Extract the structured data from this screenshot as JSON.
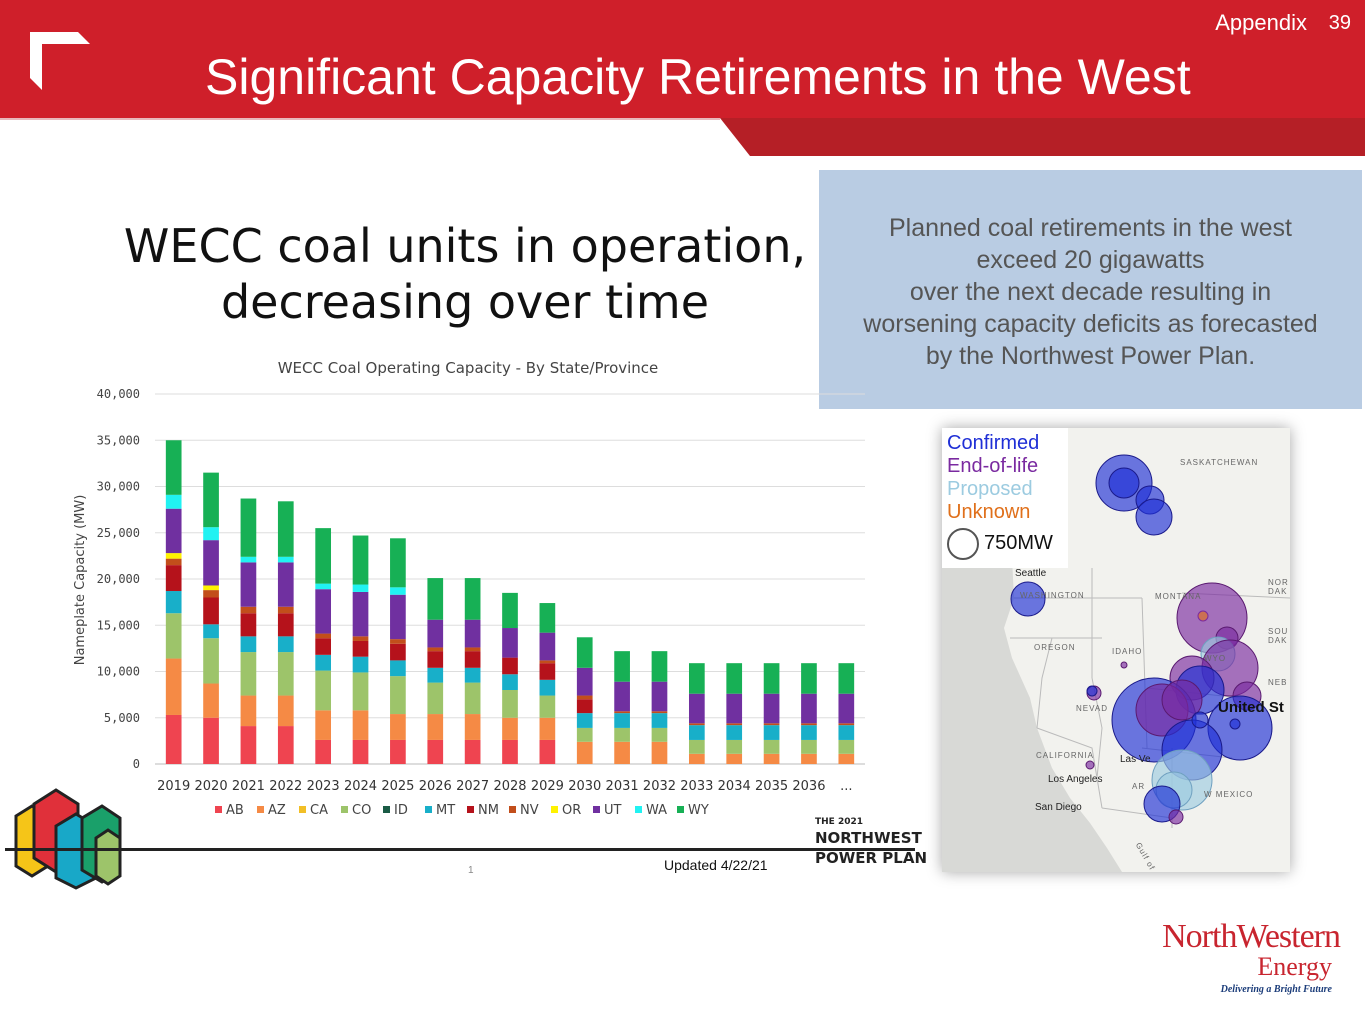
{
  "header": {
    "section": "Appendix",
    "page_number": "39",
    "title": "Significant Capacity Retirements in the West"
  },
  "chart_heading": {
    "line1": "WECC coal units in operation,",
    "line2": "decreasing over time"
  },
  "callout": {
    "line1": "Planned coal retirements in the west",
    "line2": "exceed 20 gigawatts",
    "line3": "over the next decade resulting in",
    "line4": "worsening capacity deficits as forecasted",
    "line5": "by the Northwest Power Plan."
  },
  "chart_data": {
    "type": "bar",
    "stacked": true,
    "title": "WECC Coal Operating Capacity - By State/Province",
    "ylabel": "Nameplate Capacity (MW)",
    "xlabel": "",
    "ylim": [
      0,
      40000
    ],
    "yticks": [
      "0",
      "5,000",
      "10,000",
      "15,000",
      "20,000",
      "25,000",
      "30,000",
      "35,000",
      "40,000"
    ],
    "grid": true,
    "legend_position": "bottom",
    "categories": [
      "2019",
      "2020",
      "2021",
      "2022",
      "2023",
      "2024",
      "2025",
      "2026",
      "2027",
      "2028",
      "2029",
      "2030",
      "2031",
      "2032",
      "2033",
      "2034",
      "2035",
      "2036",
      "..."
    ],
    "series": [
      {
        "name": "AB",
        "color": "#ef4450",
        "values": [
          5300,
          5000,
          4100,
          4100,
          2600,
          2600,
          2600,
          2600,
          2600,
          2600,
          2600,
          0,
          0,
          0,
          0,
          0,
          0,
          0,
          0
        ]
      },
      {
        "name": "AZ",
        "color": "#f58a45",
        "values": [
          6100,
          3700,
          3300,
          3300,
          3200,
          3200,
          2800,
          2800,
          2800,
          2400,
          2400,
          2400,
          2400,
          2400,
          1100,
          1100,
          1100,
          1100,
          1100
        ]
      },
      {
        "name": "CA",
        "color": "#f2bf26",
        "values": [
          0,
          0,
          0,
          0,
          0,
          0,
          0,
          0,
          0,
          0,
          0,
          0,
          0,
          0,
          0,
          0,
          0,
          0,
          0
        ]
      },
      {
        "name": "CO",
        "color": "#9dc46a",
        "values": [
          4900,
          4900,
          4700,
          4700,
          4300,
          4100,
          4100,
          3400,
          3400,
          3000,
          2400,
          1500,
          1500,
          1500,
          1500,
          1500,
          1500,
          1500,
          1500
        ]
      },
      {
        "name": "ID",
        "color": "#1a5b45",
        "values": [
          0,
          0,
          0,
          0,
          0,
          0,
          0,
          0,
          0,
          0,
          0,
          0,
          0,
          0,
          0,
          0,
          0,
          0,
          0
        ]
      },
      {
        "name": "MT",
        "color": "#18afc9",
        "values": [
          2400,
          1500,
          1700,
          1700,
          1700,
          1700,
          1700,
          1600,
          1600,
          1700,
          1700,
          1600,
          1600,
          1600,
          1600,
          1600,
          1600,
          1600,
          1600
        ]
      },
      {
        "name": "NM",
        "color": "#b5121b",
        "values": [
          2800,
          2900,
          2500,
          2500,
          1800,
          1700,
          1800,
          1800,
          1800,
          1800,
          1800,
          1500,
          0,
          0,
          0,
          0,
          0,
          0,
          0
        ]
      },
      {
        "name": "NV",
        "color": "#c24e1b",
        "values": [
          700,
          800,
          700,
          700,
          500,
          500,
          500,
          400,
          400,
          0,
          300,
          400,
          200,
          200,
          200,
          200,
          200,
          200,
          200
        ]
      },
      {
        "name": "OR",
        "color": "#fff200",
        "values": [
          600,
          500,
          0,
          0,
          0,
          0,
          0,
          0,
          0,
          0,
          0,
          0,
          0,
          0,
          0,
          0,
          0,
          0,
          0
        ]
      },
      {
        "name": "UT",
        "color": "#7030a0",
        "values": [
          4800,
          4900,
          4800,
          4800,
          4800,
          4800,
          4800,
          3000,
          3000,
          3200,
          3000,
          3000,
          3200,
          3200,
          3200,
          3200,
          3200,
          3200,
          3200
        ]
      },
      {
        "name": "WA",
        "color": "#21f2f2",
        "values": [
          1500,
          1400,
          600,
          600,
          600,
          800,
          800,
          0,
          0,
          0,
          0,
          0,
          0,
          0,
          0,
          0,
          0,
          0,
          0
        ]
      },
      {
        "name": "WY",
        "color": "#17b055",
        "values": [
          5900,
          5900,
          6300,
          6000,
          6000,
          5300,
          5300,
          4500,
          4500,
          3800,
          3200,
          3300,
          3300,
          3300,
          3300,
          3300,
          3300,
          3300,
          3300
        ]
      }
    ]
  },
  "map": {
    "legend": {
      "confirmed": "Confirmed",
      "end_of_life": "End-of-life",
      "proposed": "Proposed",
      "unknown": "Unknown",
      "scale": "750MW"
    },
    "labels": {
      "saskatchewan": "SASKATCHEWAN",
      "seattle": "Seattle",
      "washington": "WASHINGTON",
      "montana": "MONTANA",
      "north_dakota_1": "NOR",
      "north_dakota_2": "DAK",
      "oregon": "OREGON",
      "idaho": "IDAHO",
      "wyoming": "WYO",
      "south_dakota_1": "SOU",
      "south_dakota_2": "DAK",
      "nebraska": "NEB",
      "nevada": "NEVAD",
      "united_states": "United St",
      "california": "CALIFORNIA",
      "las_vegas": "Las Ve",
      "los_angeles": "Los Angeles",
      "arizona": "AR",
      "new_mexico": "W MEXICO",
      "san_diego": "San Diego",
      "gulf": "Gulf of"
    },
    "colors": {
      "confirmed": "#1f2fd6",
      "end_of_life": "#7a2aa0",
      "proposed": "#9ccbe0",
      "unknown": "#e0701b"
    }
  },
  "footer": {
    "updated": "Updated 4/22/21",
    "footnote": "1",
    "plan_line1": "THE 2021",
    "plan_line2": "NORTHWEST",
    "plan_line3": "POWER PLAN"
  },
  "brand": {
    "name_line1": "NorthWestern",
    "name_line2": "Energy",
    "tagline": "Delivering a Bright Future"
  }
}
